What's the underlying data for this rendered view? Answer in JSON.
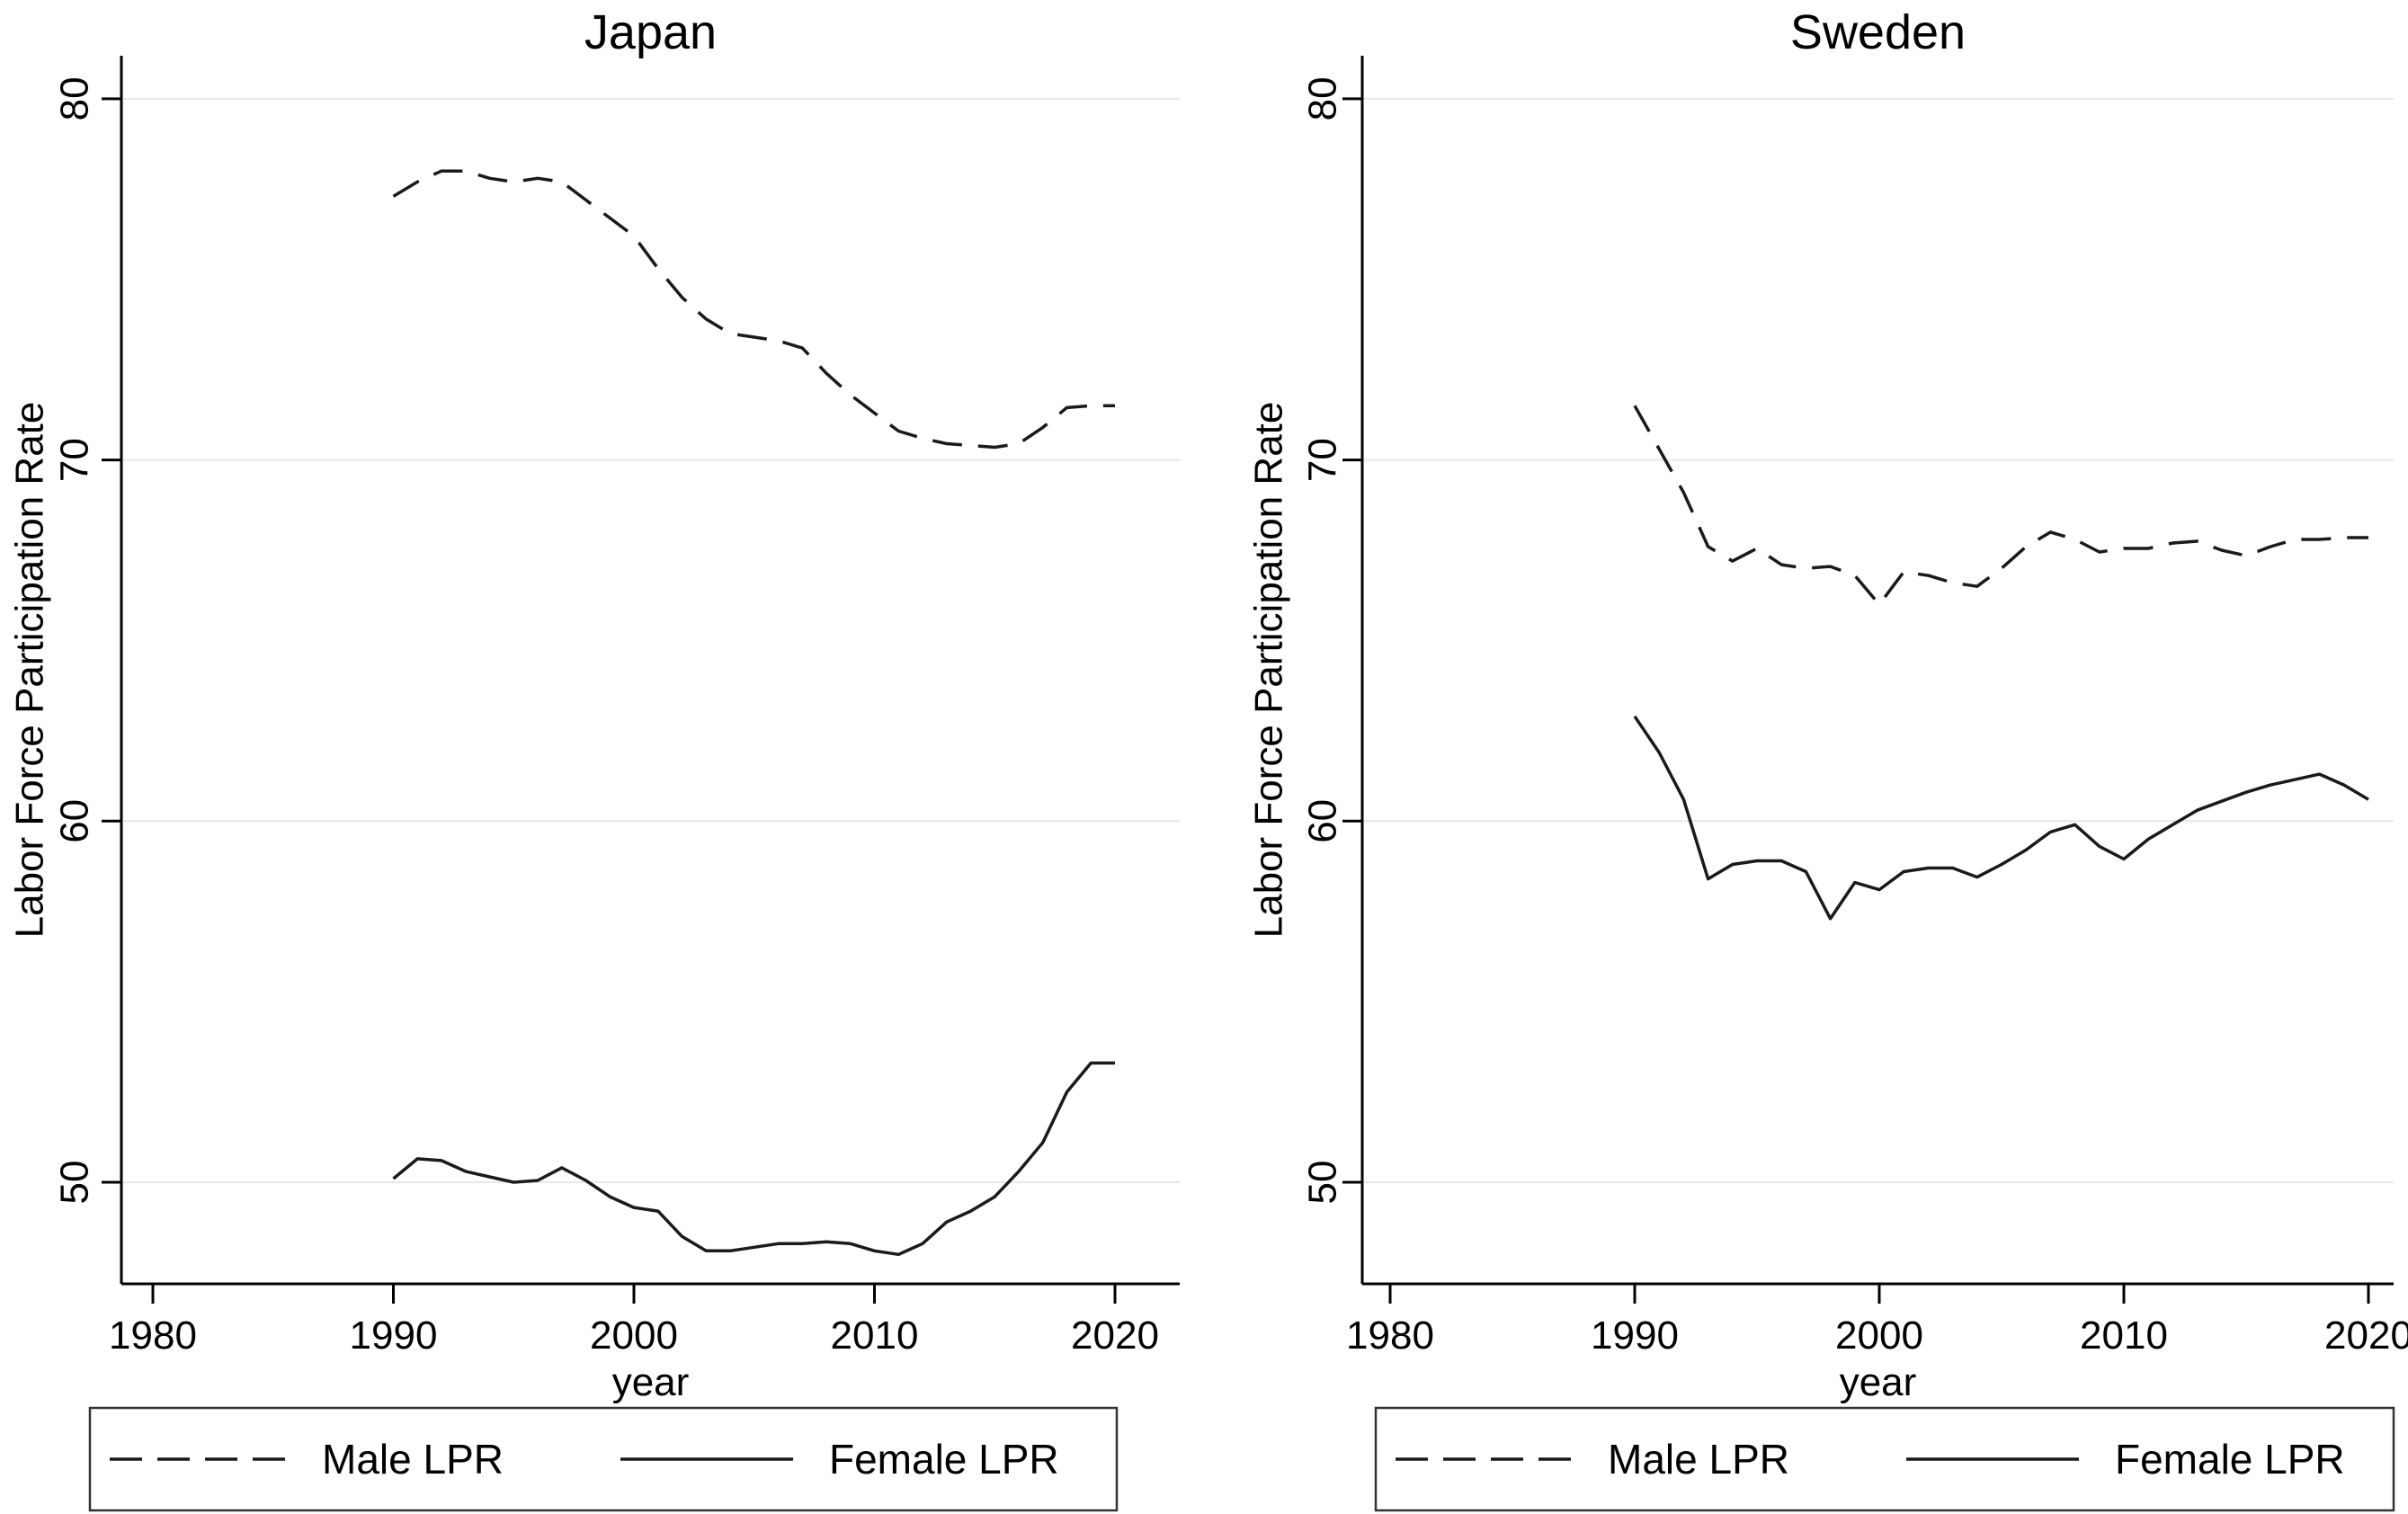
{
  "figure": {
    "background_color": "#ffffff",
    "line_color": "#1a1a1a",
    "gridline_color": "#e8e8e8",
    "axis_color": "#000000",
    "legend_border_color": "#333333"
  },
  "chart_data": [
    {
      "type": "line",
      "title": "Japan",
      "xlabel": "year",
      "ylabel": "Labor Force Participation Rate",
      "xticks": [
        1980,
        1990,
        2000,
        2010,
        2020
      ],
      "yticks": [
        50,
        60,
        70,
        80
      ],
      "xlim": [
        1978.7,
        2022.6
      ],
      "ylim": [
        47.2,
        81.2
      ],
      "grid": "horizontal",
      "legend_position": "bottom",
      "x": [
        1990,
        1991,
        1992,
        1993,
        1994,
        1995,
        1996,
        1997,
        1998,
        1999,
        2000,
        2001,
        2002,
        2003,
        2004,
        2005,
        2006,
        2007,
        2008,
        2009,
        2010,
        2011,
        2012,
        2013,
        2014,
        2015,
        2016,
        2017,
        2018,
        2019,
        2020
      ],
      "series": [
        {
          "name": "Male LPR",
          "style": "dashed",
          "values": [
            77.3,
            77.7,
            78.0,
            78.0,
            77.8,
            77.7,
            77.8,
            77.7,
            77.2,
            76.7,
            76.2,
            75.3,
            74.5,
            73.9,
            73.5,
            73.4,
            73.3,
            73.1,
            72.4,
            71.8,
            71.3,
            70.8,
            70.6,
            70.45,
            70.4,
            70.35,
            70.45,
            70.9,
            71.45,
            71.5,
            71.5
          ]
        },
        {
          "name": "Female LPR",
          "style": "solid",
          "values": [
            50.1,
            50.65,
            50.6,
            50.3,
            50.15,
            50.0,
            50.05,
            50.4,
            50.05,
            49.6,
            49.3,
            49.2,
            48.5,
            48.1,
            48.1,
            48.2,
            48.3,
            48.3,
            48.35,
            48.3,
            48.1,
            48.0,
            48.3,
            48.9,
            49.2,
            49.6,
            50.3,
            51.1,
            52.5,
            53.3,
            53.3
          ]
        }
      ]
    },
    {
      "type": "line",
      "title": "Sweden",
      "xlabel": "year",
      "ylabel": "Labor Force Participation Rate",
      "xticks": [
        1980,
        1990,
        2000,
        2010,
        2020
      ],
      "yticks": [
        50,
        60,
        70,
        80
      ],
      "xlim": [
        1978.9,
        2021.0
      ],
      "ylim": [
        47.2,
        81.2
      ],
      "grid": "horizontal",
      "legend_position": "bottom",
      "x": [
        1990,
        1991,
        1992,
        1993,
        1994,
        1995,
        1996,
        1997,
        1998,
        1999,
        2000,
        2001,
        2002,
        2003,
        2004,
        2005,
        2006,
        2007,
        2008,
        2009,
        2010,
        2011,
        2012,
        2013,
        2014,
        2015,
        2016,
        2017,
        2018,
        2019,
        2020
      ],
      "series": [
        {
          "name": "Male LPR",
          "style": "dashed",
          "values": [
            71.5,
            70.3,
            69.1,
            67.6,
            67.2,
            67.55,
            67.1,
            67.0,
            67.05,
            66.8,
            66.0,
            66.9,
            66.8,
            66.6,
            66.5,
            67.0,
            67.6,
            68.0,
            67.8,
            67.45,
            67.55,
            67.55,
            67.7,
            67.75,
            67.5,
            67.35,
            67.6,
            67.8,
            67.8,
            67.85,
            67.85
          ]
        },
        {
          "name": "Female LPR",
          "style": "solid",
          "values": [
            62.9,
            61.9,
            60.6,
            58.4,
            58.8,
            58.9,
            58.9,
            58.6,
            57.3,
            58.3,
            58.1,
            58.6,
            58.7,
            58.7,
            58.45,
            58.8,
            59.2,
            59.7,
            59.9,
            59.3,
            58.95,
            59.5,
            59.9,
            60.3,
            60.55,
            60.8,
            61.0,
            61.15,
            61.3,
            61.0,
            60.6
          ]
        }
      ]
    }
  ]
}
